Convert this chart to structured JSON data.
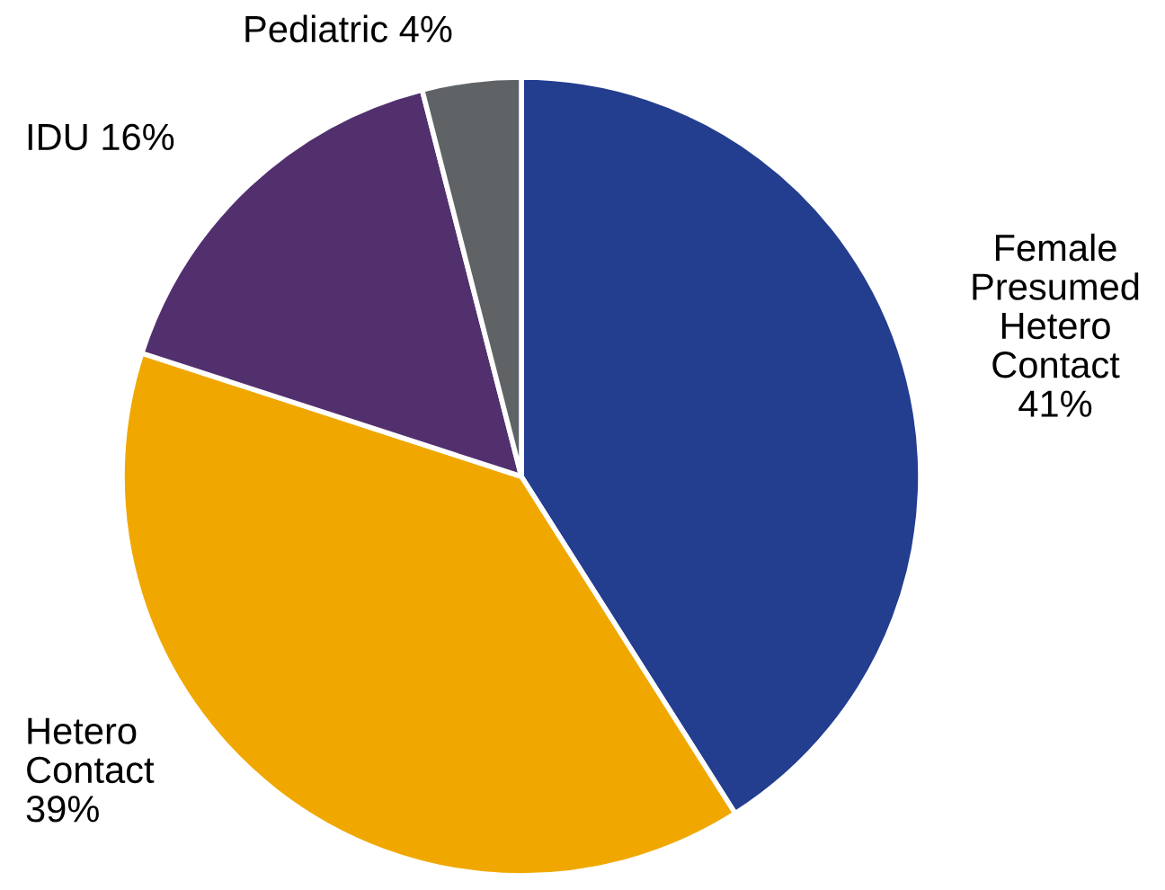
{
  "chart_data": {
    "type": "pie",
    "categories": [
      "Female\nPresumed\nHetero\nContact",
      "Hetero\nContact",
      "IDU",
      "Pediatric"
    ],
    "values": [
      41,
      39,
      16,
      4
    ],
    "value_labels": [
      "41%",
      "39%",
      "16%",
      "4%"
    ],
    "colors": [
      "#233d8f",
      "#f0a800",
      "#52306e",
      "#5f6366"
    ]
  }
}
